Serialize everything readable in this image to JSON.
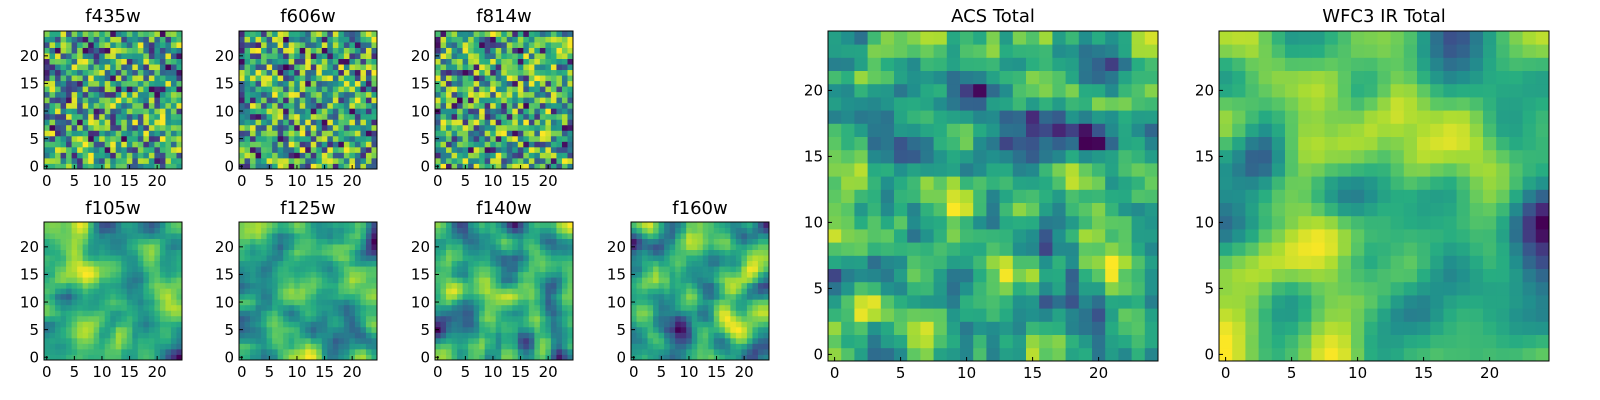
{
  "colors": {
    "colormap": "viridis",
    "axes_frame": "#000000",
    "background": "#ffffff"
  },
  "chart_data": [
    {
      "type": "heatmap",
      "title": "f435w",
      "grid": "25x25",
      "xlim": [
        -0.5,
        24.5
      ],
      "ylim": [
        -0.5,
        24.5
      ],
      "origin": "lower",
      "xticks": [
        0,
        5,
        10,
        15,
        20
      ],
      "yticks": [
        0,
        5,
        10,
        15,
        20
      ],
      "xlabel": "",
      "ylabel": "",
      "color_range": [
        0,
        1
      ],
      "seed": 11,
      "smoothing": 0,
      "mean_level": 0.72,
      "note": "random pixel noise; values are approximate"
    },
    {
      "type": "heatmap",
      "title": "f606w",
      "grid": "25x25",
      "xlim": [
        -0.5,
        24.5
      ],
      "ylim": [
        -0.5,
        24.5
      ],
      "origin": "lower",
      "xticks": [
        0,
        5,
        10,
        15,
        20
      ],
      "yticks": [
        0,
        5,
        10,
        15,
        20
      ],
      "xlabel": "",
      "ylabel": "",
      "color_range": [
        0,
        1
      ],
      "seed": 23,
      "smoothing": 0,
      "mean_level": 0.68,
      "note": "random pixel noise; values are approximate"
    },
    {
      "type": "heatmap",
      "title": "f814w",
      "grid": "25x25",
      "xlim": [
        -0.5,
        24.5
      ],
      "ylim": [
        -0.5,
        24.5
      ],
      "origin": "lower",
      "xticks": [
        0,
        5,
        10,
        15,
        20
      ],
      "yticks": [
        0,
        5,
        10,
        15,
        20
      ],
      "xlabel": "",
      "ylabel": "",
      "color_range": [
        0,
        1
      ],
      "seed": 37,
      "smoothing": 0,
      "mean_level": 0.7,
      "note": "random pixel noise; values are approximate"
    },
    {
      "type": "heatmap",
      "title": "f105w",
      "grid": "25x25",
      "xlim": [
        -0.5,
        24.5
      ],
      "ylim": [
        -0.5,
        24.5
      ],
      "origin": "lower",
      "xticks": [
        0,
        5,
        10,
        15,
        20
      ],
      "yticks": [
        0,
        5,
        10,
        15,
        20
      ],
      "xlabel": "",
      "ylabel": "",
      "color_range": [
        0,
        1
      ],
      "seed": 41,
      "smoothing": 1,
      "mean_level": 0.72,
      "note": "smooth noise field; values are approximate"
    },
    {
      "type": "heatmap",
      "title": "f125w",
      "grid": "25x25",
      "xlim": [
        -0.5,
        24.5
      ],
      "ylim": [
        -0.5,
        24.5
      ],
      "origin": "lower",
      "xticks": [
        0,
        5,
        10,
        15,
        20
      ],
      "yticks": [
        0,
        5,
        10,
        15,
        20
      ],
      "xlabel": "",
      "ylabel": "",
      "color_range": [
        0,
        1
      ],
      "seed": 53,
      "smoothing": 1,
      "mean_level": 0.68,
      "note": "smooth noise field; values are approximate"
    },
    {
      "type": "heatmap",
      "title": "f140w",
      "grid": "25x25",
      "xlim": [
        -0.5,
        24.5
      ],
      "ylim": [
        -0.5,
        24.5
      ],
      "origin": "lower",
      "xticks": [
        0,
        5,
        10,
        15,
        20
      ],
      "yticks": [
        0,
        5,
        10,
        15,
        20
      ],
      "xlabel": "",
      "ylabel": "",
      "color_range": [
        0,
        1
      ],
      "seed": 67,
      "smoothing": 1,
      "mean_level": 0.7,
      "note": "smooth noise field; values are approximate"
    },
    {
      "type": "heatmap",
      "title": "f160w",
      "grid": "25x25",
      "xlim": [
        -0.5,
        24.5
      ],
      "ylim": [
        -0.5,
        24.5
      ],
      "origin": "lower",
      "xticks": [
        0,
        5,
        10,
        15,
        20
      ],
      "yticks": [
        0,
        5,
        10,
        15,
        20
      ],
      "xlabel": "",
      "ylabel": "",
      "color_range": [
        0,
        1
      ],
      "seed": 79,
      "smoothing": 1,
      "mean_level": 0.7,
      "note": "smooth noise field; values are approximate"
    },
    {
      "type": "heatmap",
      "title": "ACS Total",
      "grid": "25x25",
      "xlim": [
        -0.5,
        24.5
      ],
      "ylim": [
        -0.5,
        24.5
      ],
      "origin": "lower",
      "xticks": [
        0,
        5,
        10,
        15,
        20
      ],
      "yticks": [
        0,
        5,
        10,
        15,
        20
      ],
      "xlabel": "",
      "ylabel": "",
      "color_range": [
        0,
        1
      ],
      "seed": 97,
      "smoothing": 0.5,
      "mean_level": 0.68,
      "note": "pixel noise; values are approximate"
    },
    {
      "type": "heatmap",
      "title": "WFC3 IR Total",
      "grid": "25x25",
      "xlim": [
        -0.5,
        24.5
      ],
      "ylim": [
        -0.5,
        24.5
      ],
      "origin": "lower",
      "xticks": [
        0,
        5,
        10,
        15,
        20
      ],
      "yticks": [
        0,
        5,
        10,
        15,
        20
      ],
      "xlabel": "",
      "ylabel": "",
      "color_range": [
        0,
        1
      ],
      "seed": 113,
      "smoothing": 1.5,
      "mean_level": 0.66,
      "note": "smooth field, bright toward upper-left; values are approximate"
    }
  ]
}
